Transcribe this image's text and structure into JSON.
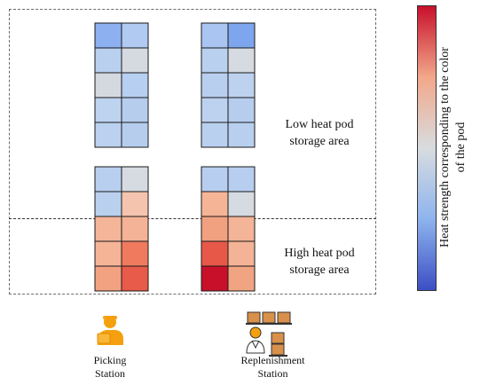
{
  "areas": {
    "low_label_line1": "Low heat pod",
    "low_label_line2": "storage area",
    "high_label_line1": "High heat pod",
    "high_label_line2": "storage area"
  },
  "colorbar": {
    "label_line1": "Heat strength corresponding to the color",
    "label_line2": "of the pod",
    "low_color": "#3b4fc4",
    "mid_color": "#d8dcdf",
    "high_color": "#c8102b"
  },
  "stations": {
    "picking_line1": "Picking",
    "picking_line2": "Station",
    "replenishment_line1": "Replenishment",
    "replenishment_line2": "Station",
    "picking_icon": "person-carrying-box-icon",
    "replenishment_icon": "worker-with-boxes-icon"
  },
  "pod_colors": {
    "top_left": [
      "#8cb0f0",
      "#b0caf2",
      "#b9d0ef",
      "#d4dae0",
      "#d4d9e0",
      "#b7cff0",
      "#bdd3ef",
      "#b6cdee",
      "#bbd1ef",
      "#b6cdee"
    ],
    "top_right": [
      "#aac5f2",
      "#7ea6ee",
      "#bad0ef",
      "#d5dbe1",
      "#b8cfef",
      "#bcd2ef",
      "#bcd2ef",
      "#b6cdee",
      "#bad0ef",
      "#b8cfef"
    ],
    "bot_left": [
      "#b8cfef",
      "#d6dbe2",
      "#bad0ef",
      "#f5c4ae",
      "#f4b599",
      "#f4b396",
      "#f6b497",
      "#ef7a5e",
      "#f3a281",
      "#e85a49"
    ],
    "bot_right": [
      "#b7cef0",
      "#b7cef0",
      "#f6b497",
      "#d5dbe1",
      "#f2a180",
      "#f3b497",
      "#e75848",
      "#f4b396",
      "#c8102b",
      "#f0a482"
    ]
  }
}
